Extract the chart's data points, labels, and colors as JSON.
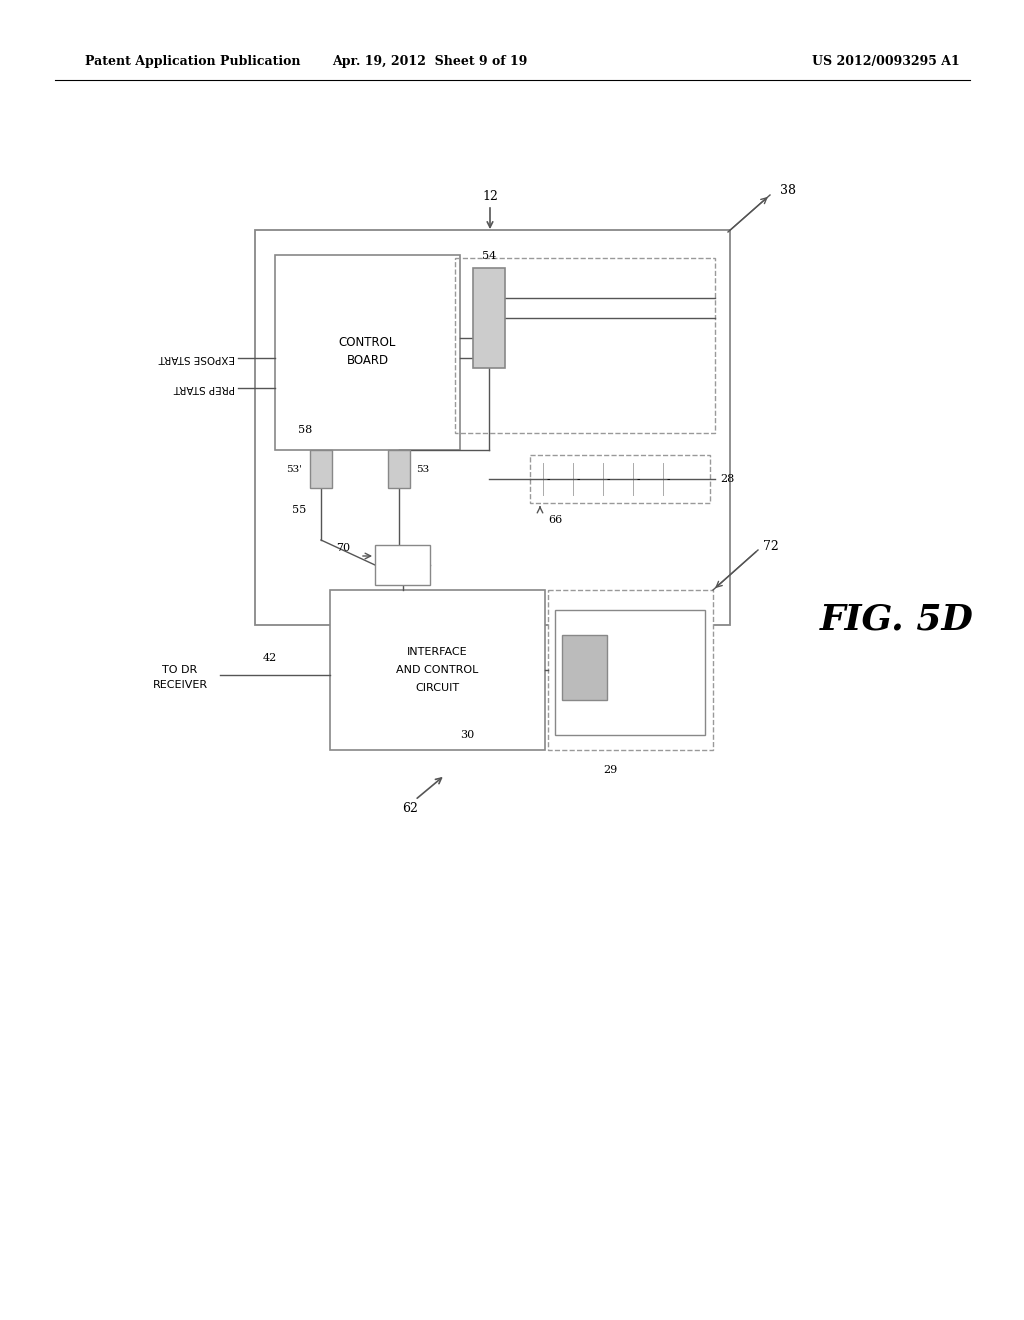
{
  "bg_color": "#ffffff",
  "header_left": "Patent Application Publication",
  "header_mid": "Apr. 19, 2012  Sheet 9 of 19",
  "header_right": "US 2012/0093295 A1",
  "fig_label": "FIG. 5D",
  "line_color": "#888888",
  "box_color": "#aaaaaa"
}
